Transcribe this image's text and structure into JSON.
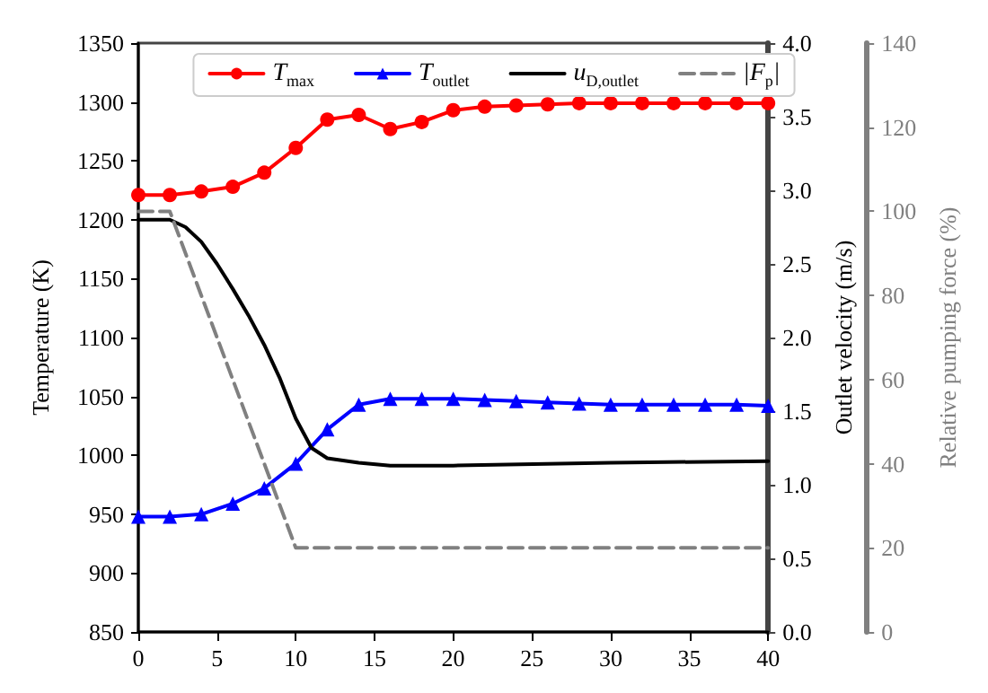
{
  "chart_data": {
    "type": "line",
    "xlim": [
      0,
      40
    ],
    "xticks": [
      0,
      5,
      10,
      15,
      20,
      25,
      30,
      35,
      40
    ],
    "ylim": [
      850,
      1350
    ],
    "yticks": [
      850,
      900,
      950,
      1000,
      1050,
      1100,
      1150,
      1200,
      1250,
      1300,
      1350
    ],
    "y2lim": [
      0,
      4
    ],
    "y2ticks": [
      {
        "value": 0,
        "label": "0.0"
      },
      0.5,
      {
        "value": 1,
        "label": "1.0"
      },
      1.5,
      {
        "value": 2,
        "label": "2.0"
      },
      2.5,
      {
        "value": 3,
        "label": "3.0"
      },
      3.5,
      {
        "value": 4,
        "label": "4.0"
      }
    ],
    "y3lim": [
      0,
      140
    ],
    "y3ticks": [
      0,
      20,
      40,
      60,
      80,
      100,
      120,
      140
    ],
    "ylabel": "Temperature (K)",
    "y2label": "Outlet velocity (m/s)",
    "y3label": "Relative pumping force (%)",
    "legend": "top",
    "grid": false,
    "series": [
      {
        "name": "T$_{max}$",
        "color": "#ff0000",
        "marker": "circle",
        "line_style": "solid",
        "x": [
          0,
          2,
          4,
          6,
          8,
          10,
          12,
          14,
          16,
          18,
          20,
          22,
          24,
          26,
          28,
          30,
          32,
          34,
          36,
          38,
          40
        ],
        "values": [
          1221,
          1221,
          1224,
          1228,
          1240,
          1261,
          1285,
          1289,
          1277,
          1283,
          1293,
          1296,
          1297,
          1298,
          1299,
          1299,
          1299,
          1299,
          1299,
          1299,
          1299
        ]
      },
      {
        "name": "T$_{outlet}$",
        "color": "#0000ff",
        "marker": "triangle",
        "line_style": "solid",
        "x": [
          0,
          2,
          4,
          6,
          8,
          10,
          12,
          14,
          16,
          18,
          20,
          22,
          24,
          26,
          28,
          30,
          32,
          34,
          36,
          38,
          40
        ],
        "values": [
          948,
          948,
          950,
          959,
          972,
          993,
          1022,
          1043,
          1048,
          1048,
          1048,
          1047,
          1046,
          1045,
          1044,
          1043,
          1043,
          1043,
          1043,
          1043,
          1042
        ]
      },
      {
        "name": "u$_{D,outlet}$",
        "color": "#000000",
        "marker": "none",
        "line_style": "solid",
        "axis": "y2",
        "x": [
          0,
          2,
          3,
          4,
          5,
          6,
          7,
          8,
          9,
          10,
          11,
          12,
          14,
          16,
          20,
          30,
          40
        ],
        "values": [
          2.8,
          2.8,
          2.75,
          2.65,
          2.5,
          2.33,
          2.15,
          1.95,
          1.72,
          1.45,
          1.25,
          1.18,
          1.15,
          1.13,
          1.13,
          1.15,
          1.16
        ]
      },
      {
        "name": "|F$_{p}$|",
        "color": "#808080",
        "marker": "none",
        "line_style": "dashed",
        "axis": "y3",
        "x": [
          0,
          2,
          10,
          40
        ],
        "values": [
          100,
          100,
          20,
          20
        ]
      }
    ]
  }
}
